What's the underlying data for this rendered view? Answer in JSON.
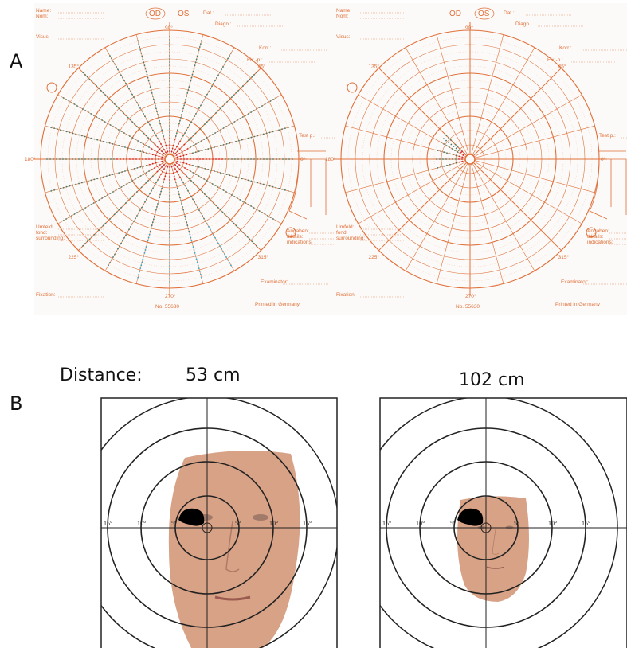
{
  "panel_a": {
    "label": "A",
    "forms": [
      {
        "texts": [
          "Name:",
          "Nom:",
          "OD",
          "OS",
          "Dat.:",
          "Diagn.:",
          "Visus:",
          "Korr.:",
          "Fix.-p.:",
          "Test p.:",
          "Umfeld:",
          "fond:",
          "surrounding:",
          "Angaben:",
          "détails:",
          "indications:",
          "Examinator:",
          "Fixation:",
          "Printed in Germany",
          "No. 55630"
        ],
        "angles": [
          "90°",
          "270°",
          "0°",
          "180°",
          "45°",
          "135°",
          "225°",
          "315°"
        ]
      },
      {
        "texts": [
          "Name:",
          "Nom:",
          "OD",
          "OS",
          "Dat.:",
          "Diagn.:",
          "Visus:",
          "Korr.:",
          "Fix.-p.:",
          "Test p.:",
          "Umfeld:",
          "fond:",
          "surrounding:",
          "Angaben:",
          "détails:",
          "indications:",
          "Examinator:",
          "Fixation:",
          "Printed in Germany",
          "No. 55630"
        ],
        "angles": [
          "90°",
          "270°",
          "0°",
          "180°",
          "45°",
          "135°",
          "225°",
          "315°"
        ]
      }
    ]
  },
  "panel_b": {
    "label": "B",
    "distance_label": "Distance:",
    "plots": [
      {
        "distance": "53 cm",
        "ring_labels": [
          "15°",
          "10°",
          "5°",
          "5°",
          "10°",
          "15°"
        ]
      },
      {
        "distance": "102 cm",
        "ring_labels": [
          "15°",
          "10°",
          "5°",
          "5°",
          "10°",
          "15°"
        ]
      }
    ]
  }
}
